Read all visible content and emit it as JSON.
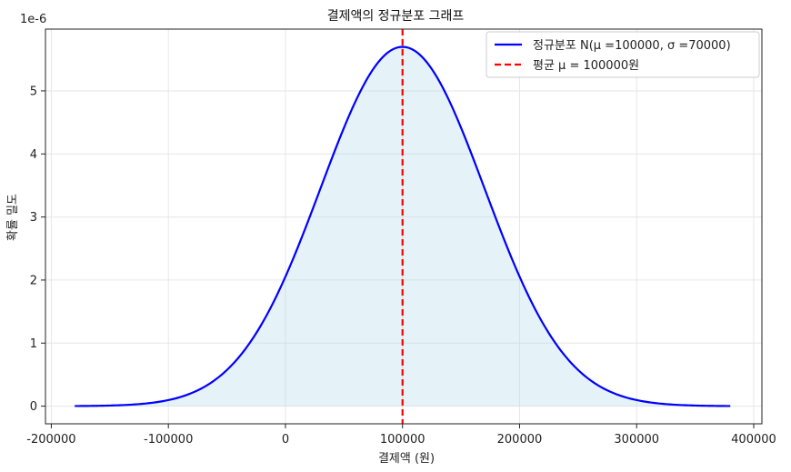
{
  "chart_data": {
    "type": "line",
    "title": "결제액의 정규분포 그래프",
    "xlabel": "결제액 (원)",
    "ylabel": "확률 밀도",
    "y_scale_label": "1e-6",
    "xlim": [
      -205000,
      407000
    ],
    "ylim": [
      -0.28,
      5.98
    ],
    "x_ticks": [
      -200000,
      -100000,
      0,
      100000,
      200000,
      300000,
      400000
    ],
    "x_tick_labels": [
      "-200000",
      "-100000",
      "0",
      "100000",
      "200000",
      "300000",
      "400000"
    ],
    "y_ticks": [
      0,
      1,
      2,
      3,
      4,
      5
    ],
    "y_tick_labels": [
      "0",
      "1",
      "2",
      "3",
      "4",
      "5"
    ],
    "grid": true,
    "legend_position": "top-right",
    "distribution": {
      "mean": 100000,
      "std": 70000,
      "x_range": [
        -180000,
        380000
      ]
    },
    "series": [
      {
        "name": "정규분포 N(μ =100000, σ =70000)",
        "kind": "curve",
        "color": "#0000ff",
        "fill": "#add8e6"
      },
      {
        "name": "평균 μ  = 100000원",
        "kind": "vline",
        "x": 100000,
        "color": "#ff0000"
      }
    ]
  }
}
